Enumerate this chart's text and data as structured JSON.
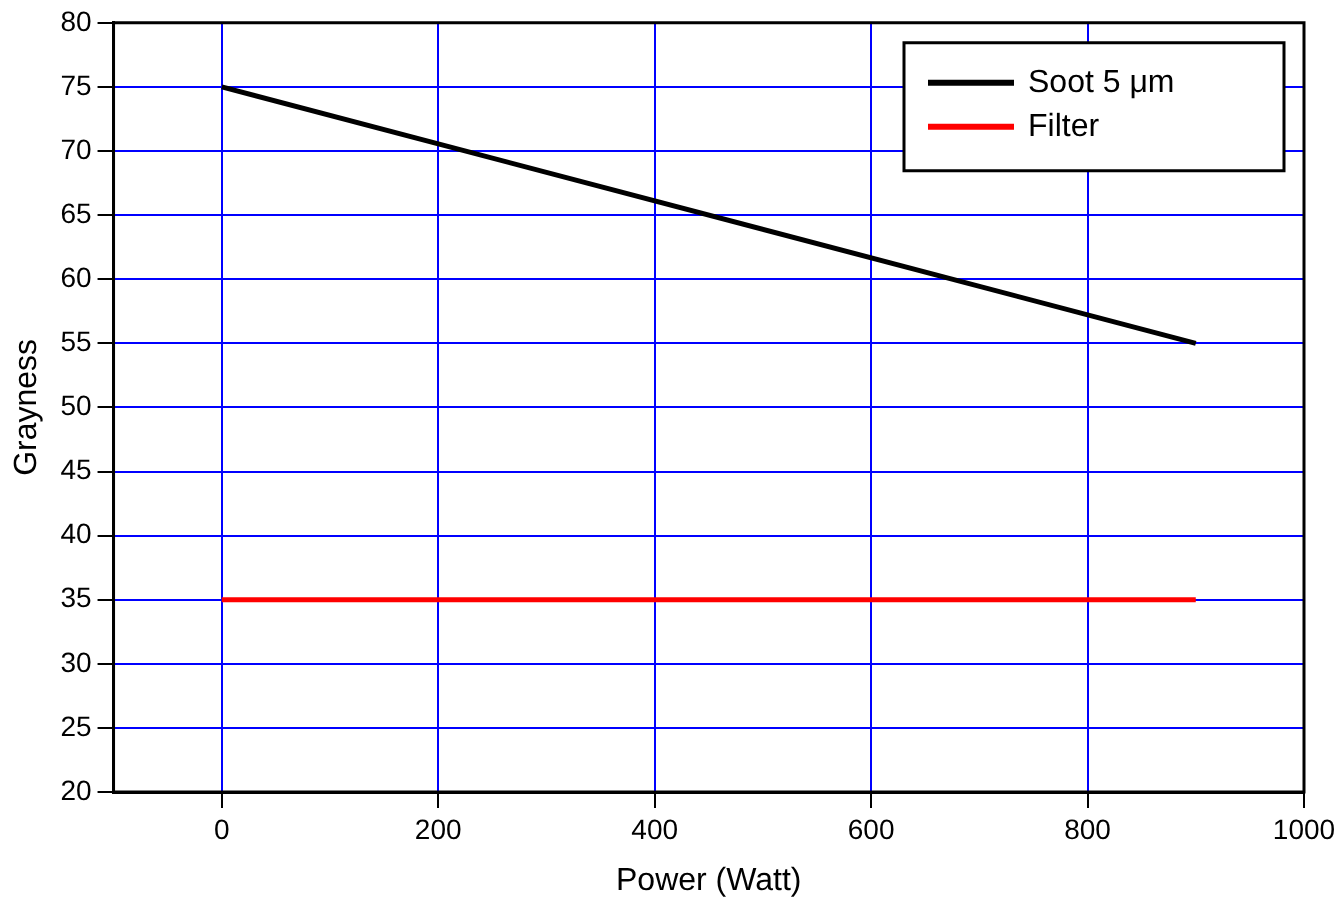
{
  "chart_data": {
    "type": "line",
    "xlabel": "Power (Watt)",
    "ylabel": "Grayness",
    "xlim": [
      -100,
      1000
    ],
    "xticks": [
      0,
      200,
      400,
      600,
      800,
      1000
    ],
    "ylim": [
      20,
      80
    ],
    "yticks": [
      20,
      25,
      30,
      35,
      40,
      45,
      50,
      55,
      60,
      65,
      70,
      75,
      80
    ],
    "x": [
      0,
      900
    ],
    "grid": true,
    "legend": "top right",
    "marker": "none",
    "line_style": "solid",
    "series": [
      {
        "name": "Soot 5 μm",
        "color": "#000000",
        "values": [
          75,
          55
        ]
      },
      {
        "name": "Filter",
        "color": "#ff0000",
        "values": [
          35,
          35
        ]
      }
    ]
  }
}
